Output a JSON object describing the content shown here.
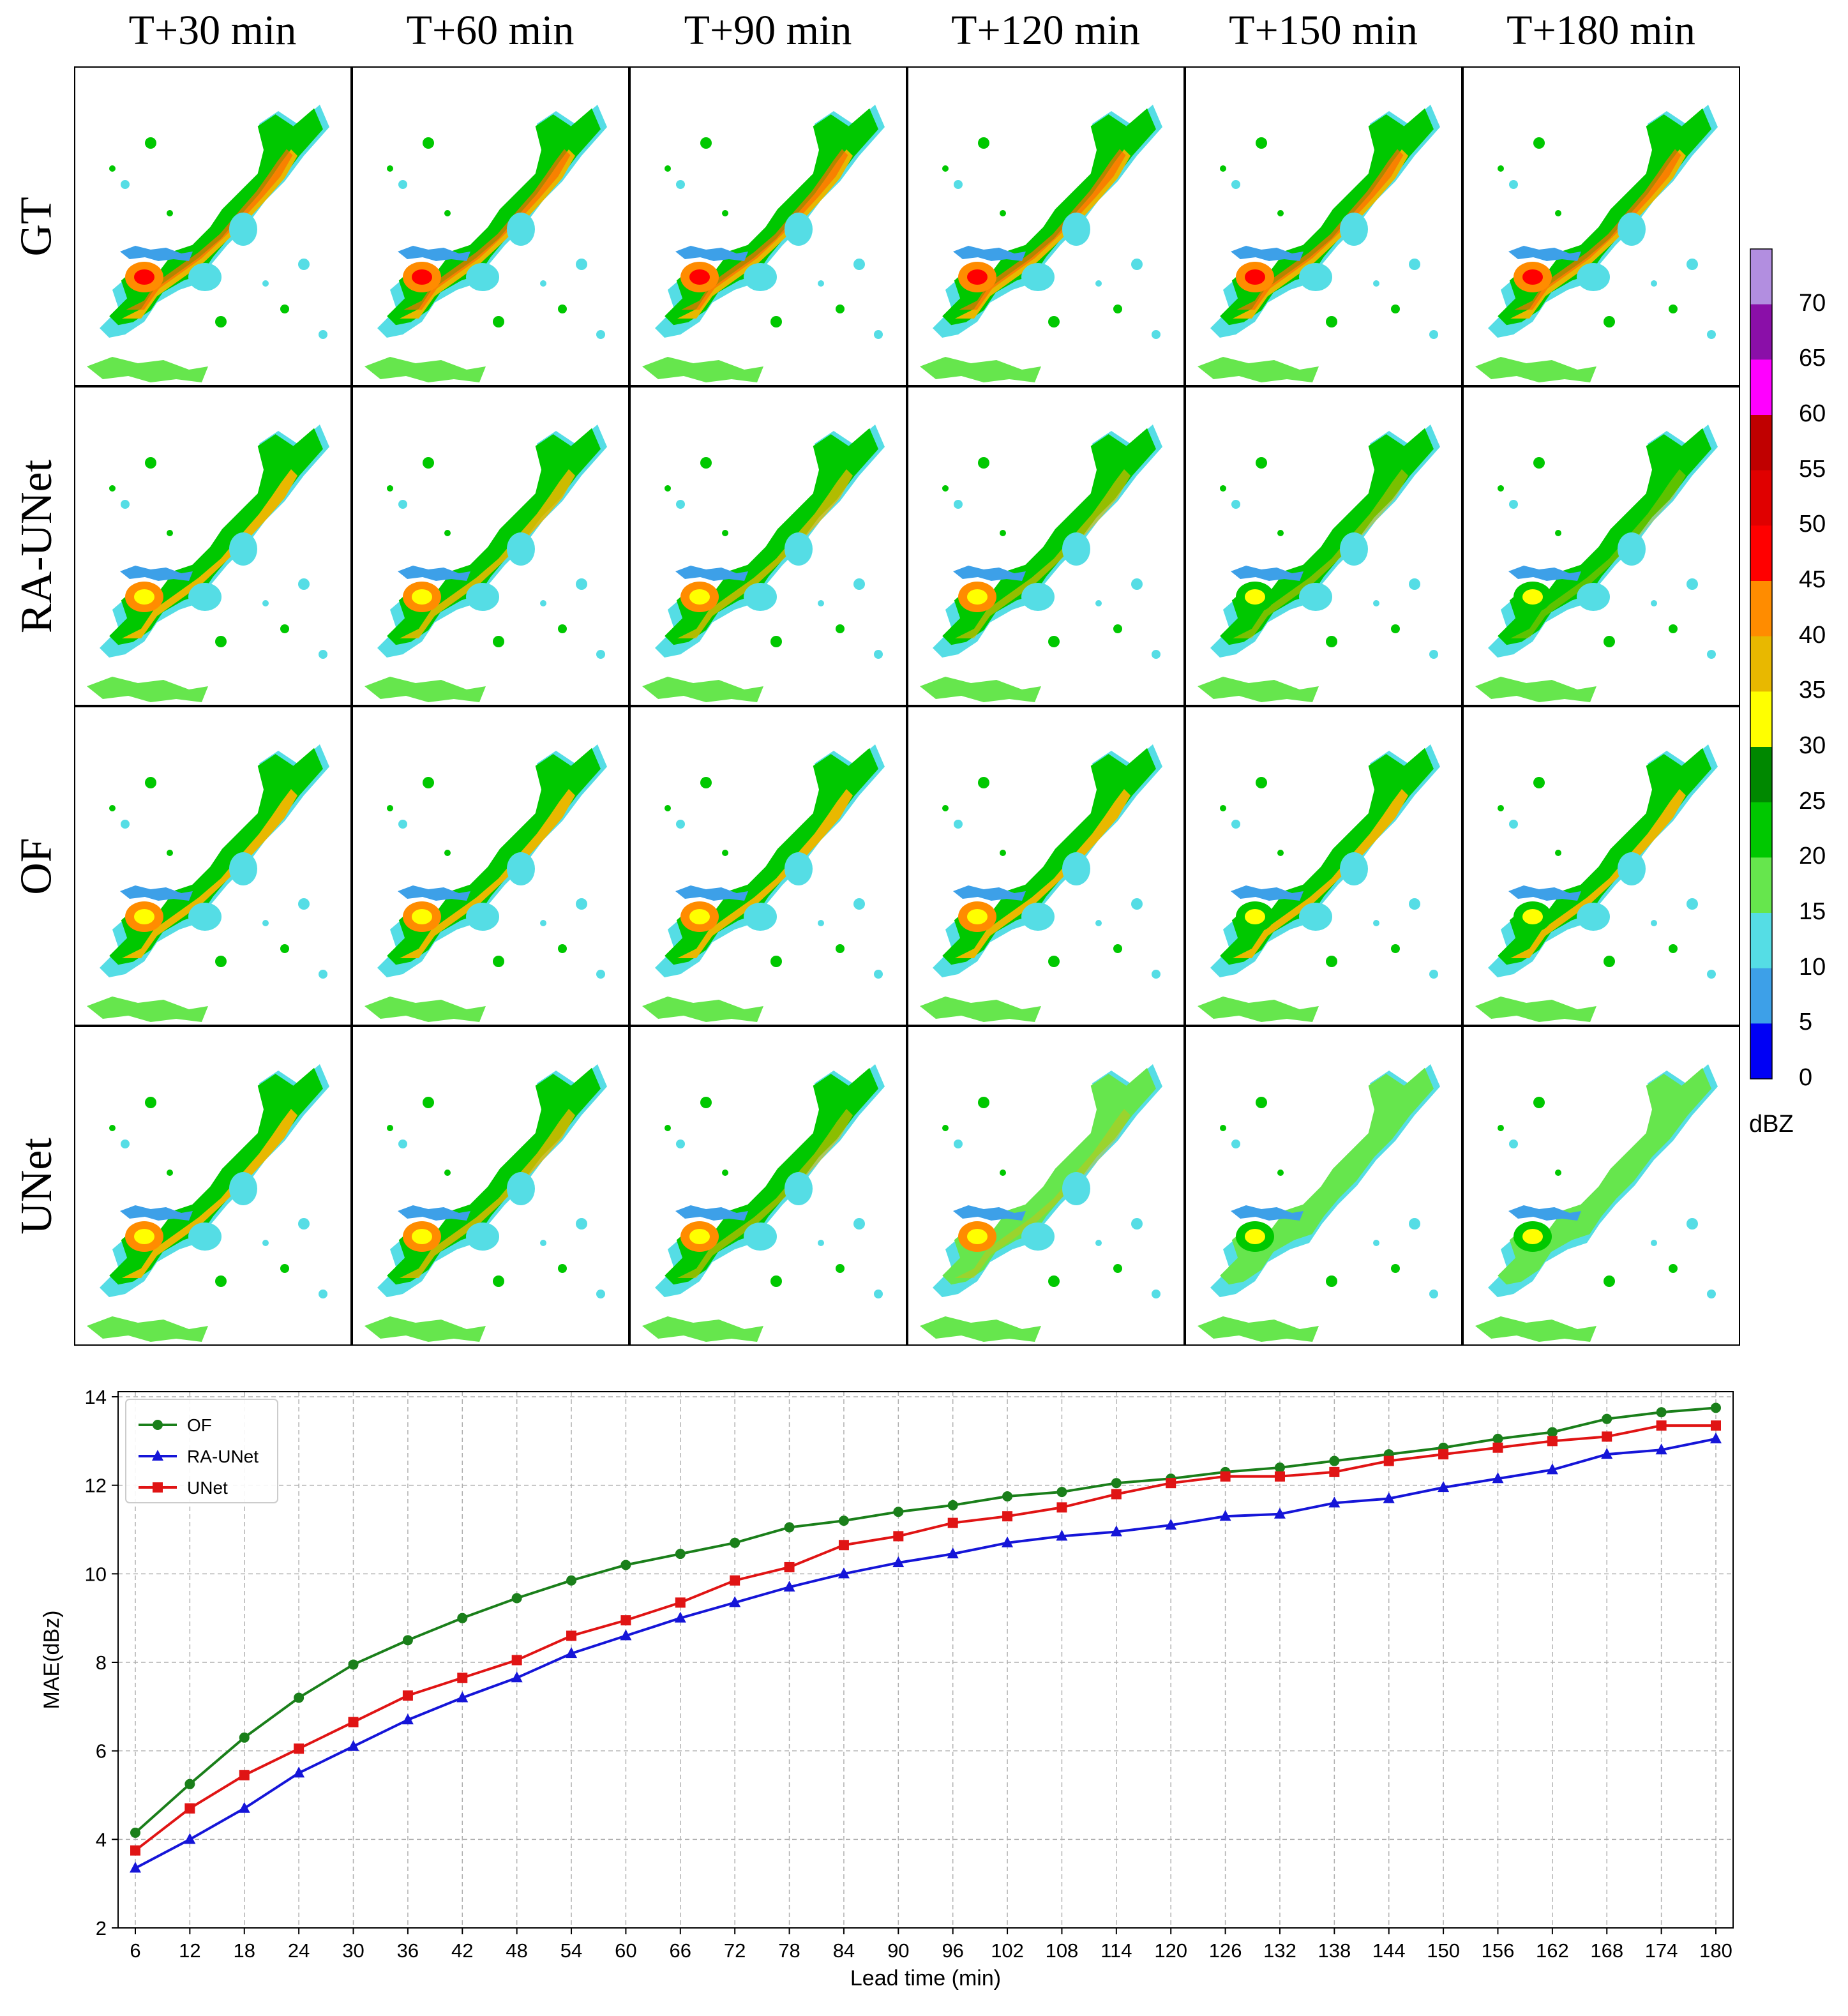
{
  "radar_grid": {
    "columns": [
      "T+30 min",
      "T+60 min",
      "T+90 min",
      "T+120 min",
      "T+150 min",
      "T+180 min"
    ],
    "rows": [
      "GT",
      "RA-UNet",
      "OF",
      "UNet"
    ],
    "colorbar": {
      "units": "dBZ",
      "labels": [
        "70",
        "65",
        "60",
        "55",
        "50",
        "45",
        "40",
        "35",
        "30",
        "25",
        "20",
        "15",
        "10",
        "5",
        "0"
      ],
      "colors": [
        "#b28ee0",
        "#8a0fa8",
        "#ff00ff",
        "#c00000",
        "#e00000",
        "#ff0000",
        "#ff8c00",
        "#e8b800",
        "#ffff00",
        "#008800",
        "#00c800",
        "#66e64d",
        "#55dde5",
        "#3da0e8",
        "#0000f5"
      ]
    }
  },
  "chart_data": {
    "type": "line",
    "title": "",
    "xlabel": "Lead time (min)",
    "ylabel": "MAE(dBz)",
    "ylim": [
      2,
      14
    ],
    "yticks": [
      "2",
      "4",
      "6",
      "8",
      "10",
      "12",
      "14"
    ],
    "grid": true,
    "legend_position": "top-left",
    "x": [
      "6",
      "12",
      "18",
      "24",
      "30",
      "36",
      "42",
      "48",
      "54",
      "60",
      "66",
      "72",
      "78",
      "84",
      "90",
      "96",
      "102",
      "108",
      "114",
      "120",
      "126",
      "132",
      "138",
      "144",
      "150",
      "156",
      "162",
      "168",
      "174",
      "180"
    ],
    "series": [
      {
        "name": "OF",
        "color": "#1a7f1a",
        "marker": "circle",
        "values": [
          4.15,
          5.25,
          6.3,
          7.2,
          7.95,
          8.5,
          9.0,
          9.45,
          9.85,
          10.2,
          10.45,
          10.7,
          11.05,
          11.2,
          11.4,
          11.55,
          11.75,
          11.85,
          12.05,
          12.15,
          12.3,
          12.4,
          12.55,
          12.7,
          12.85,
          13.05,
          13.2,
          13.5,
          13.65,
          13.75
        ]
      },
      {
        "name": "RA-UNet",
        "color": "#1515d8",
        "marker": "triangle",
        "values": [
          3.35,
          4.0,
          4.7,
          5.5,
          6.1,
          6.7,
          7.2,
          7.65,
          8.2,
          8.6,
          9.0,
          9.35,
          9.7,
          10.0,
          10.25,
          10.45,
          10.7,
          10.85,
          10.95,
          11.1,
          11.3,
          11.35,
          11.6,
          11.7,
          11.95,
          12.15,
          12.35,
          12.7,
          12.8,
          13.05
        ]
      },
      {
        "name": "UNet",
        "color": "#e01414",
        "marker": "square",
        "values": [
          3.75,
          4.7,
          5.45,
          6.05,
          6.65,
          7.25,
          7.65,
          8.05,
          8.6,
          8.95,
          9.35,
          9.85,
          10.15,
          10.65,
          10.85,
          11.15,
          11.3,
          11.5,
          11.8,
          12.05,
          12.2,
          12.2,
          12.3,
          12.55,
          12.7,
          12.85,
          13.0,
          13.1,
          13.35,
          13.35
        ]
      }
    ]
  }
}
